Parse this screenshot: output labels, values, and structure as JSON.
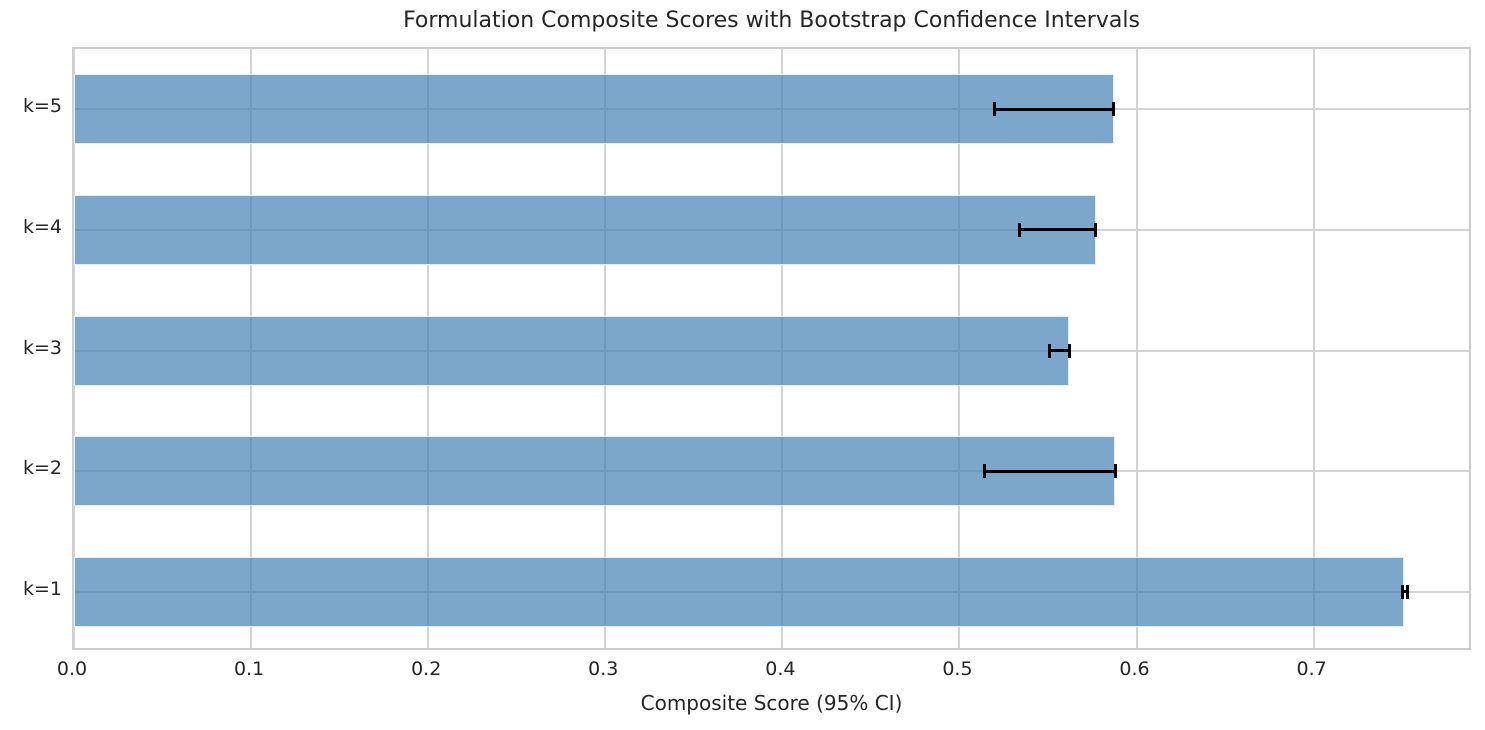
{
  "chart_data": {
    "type": "bar",
    "orientation": "horizontal",
    "title": "Formulation Composite Scores with Bootstrap Confidence Intervals",
    "xlabel": "Composite Score (95% CI)",
    "ylabel": "",
    "categories": [
      "k=5",
      "k=4",
      "k=3",
      "k=2",
      "k=1"
    ],
    "values": [
      0.587,
      0.577,
      0.562,
      0.588,
      0.751
    ],
    "ci_low": [
      0.52,
      0.534,
      0.551,
      0.514,
      0.75
    ],
    "ci_high": [
      0.587,
      0.577,
      0.562,
      0.588,
      0.753
    ],
    "x_tick_labels": [
      "0.0",
      "0.1",
      "0.2",
      "0.3",
      "0.4",
      "0.5",
      "0.6",
      "0.7"
    ],
    "x_tick_values": [
      0.0,
      0.1,
      0.2,
      0.3,
      0.4,
      0.5,
      0.6,
      0.7
    ],
    "xlim": [
      0.0,
      0.79
    ],
    "grid": true,
    "legend": false,
    "colors": {
      "bar": "#4682B4",
      "bar_alpha": 0.7,
      "errorbar": "#000000",
      "grid": "#cccccc",
      "text": "#262626",
      "background": "#ffffff"
    }
  }
}
